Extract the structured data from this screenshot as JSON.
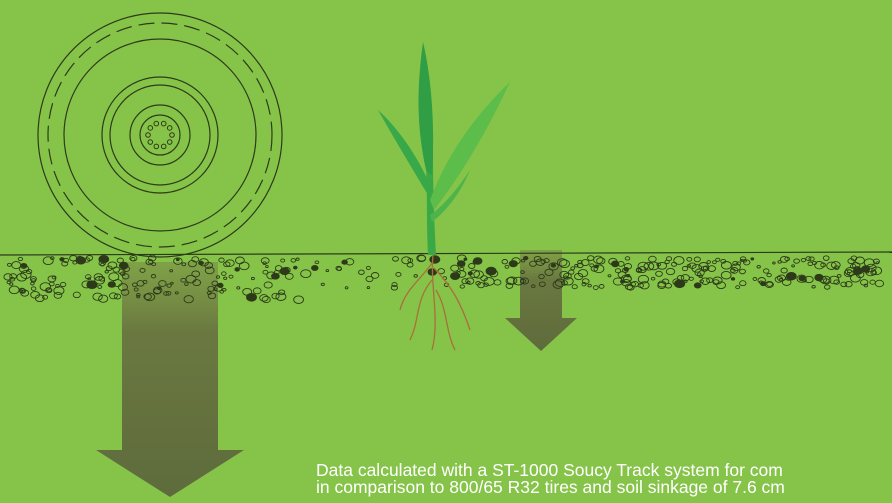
{
  "caption": {
    "line1": "Data calculated with a ST-1000 Soucy Track system for com",
    "line2": "in comparison to 800/65 R32 tires and soil sinkage of 7.6 cm"
  }
}
